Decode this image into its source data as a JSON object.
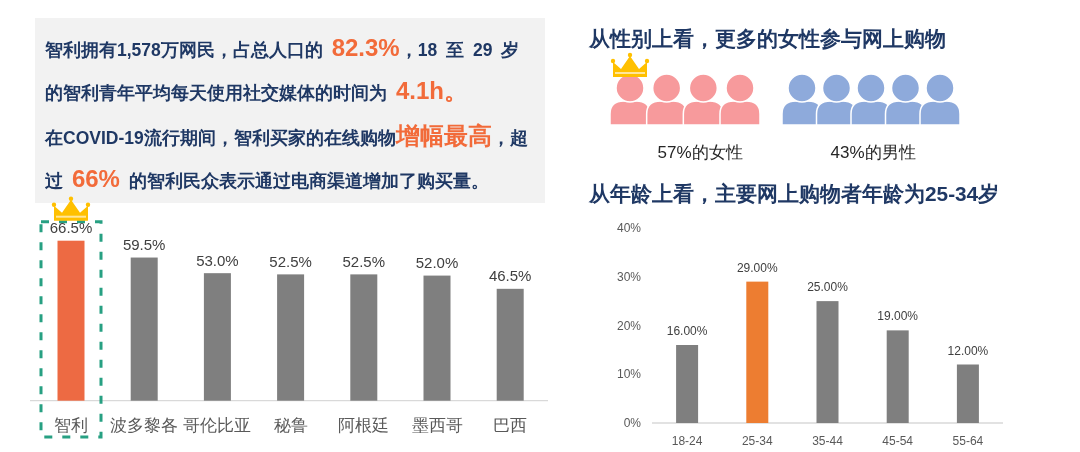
{
  "chart_data": [
    {
      "type": "other",
      "annotations": [
        "智利拥有1,578万网民，占总人口的 ",
        "82.3%",
        "，18 至 29 岁"
      ]
    },
    {
      "type": "other",
      "annotations": [
        "的智利青年平均每天使用社交媒体的时间为 ",
        "4.1h。"
      ]
    },
    {
      "type": "other",
      "annotations": [
        "在COVID-19流行期间，智利买家的在线购物",
        "增幅最高",
        "，超"
      ]
    },
    {
      "type": "other",
      "annotations": [
        "过 ",
        "66%",
        " 的智利民众表示通过电商渠道增加了购买量。"
      ]
    },
    {
      "type": "bar",
      "categories": [
        "智利",
        "波多黎各",
        "哥伦比亚",
        "秘鲁",
        "阿根廷",
        "墨西哥",
        "巴西"
      ],
      "values": [
        66.5,
        59.5,
        53.0,
        52.5,
        52.5,
        52.0,
        46.5
      ],
      "colors": [
        "#ed6a43",
        "#7f7f7f",
        "#7f7f7f",
        "#7f7f7f",
        "#7f7f7f",
        "#7f7f7f",
        "#7f7f7f"
      ],
      "value_labels": [
        "66.5%",
        "59.5%",
        "53.0%",
        "52.5%",
        "52.5%",
        "52.0%",
        "46.5%"
      ]
    },
    {
      "type": "other",
      "title": "从性别上看，更多的女性参与网上购物",
      "categories": [
        "57%的女性",
        "43%的男性"
      ],
      "colors": [
        "#f79a9c",
        "#8eaadb"
      ]
    },
    {
      "type": "bar",
      "title": "从年龄上看，主要网上购物者年龄为25-34岁",
      "categories": [
        "18-24",
        "25-34",
        "35-44",
        "45-54",
        "55-64"
      ],
      "values": [
        16,
        29,
        25,
        19,
        12
      ],
      "colors": [
        "#7f7f7f",
        "#ed7d31",
        "#7f7f7f",
        "#7f7f7f",
        "#7f7f7f"
      ],
      "value_labels": [
        "16.00%",
        "29.00%",
        "25.00%",
        "19.00%",
        "12.00%"
      ],
      "ylim": [
        0,
        40
      ],
      "yticks": [
        {
          "value": 0,
          "label": "0%"
        },
        {
          "value": 10,
          "label": "10%"
        },
        {
          "value": 20,
          "label": "20%"
        },
        {
          "value": 30,
          "label": "30%"
        },
        {
          "value": 40,
          "label": "40%"
        }
      ]
    }
  ]
}
